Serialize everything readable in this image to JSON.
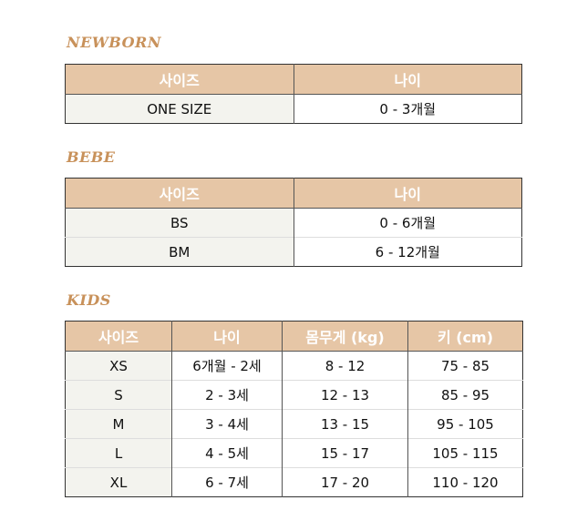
{
  "newborn": {
    "title": "NEWBORN",
    "headers": [
      "사이즈",
      "나이"
    ],
    "rows": [
      [
        "ONE SIZE",
        "0 - 3개월"
      ]
    ]
  },
  "bebe": {
    "title": "BEBE",
    "headers": [
      "사이즈",
      "나이"
    ],
    "rows": [
      [
        "BS",
        "0 - 6개월"
      ],
      [
        "BM",
        "6 - 12개월"
      ]
    ]
  },
  "kids": {
    "title": "KIDS",
    "headers": [
      "사이즈",
      "나이",
      "몸무게 (kg)",
      "키 (cm)"
    ],
    "rows": [
      [
        "XS",
        "6개월 - 2세",
        "8 - 12",
        "75 - 85"
      ],
      [
        "S",
        "2 - 3세",
        "12 - 13",
        "85 - 95"
      ],
      [
        "M",
        "3 - 4세",
        "13 - 15",
        "95 - 105"
      ],
      [
        "L",
        "4 - 5세",
        "15 - 17",
        "105 - 115"
      ],
      [
        "XL",
        "6 - 7세",
        "17 - 20",
        "110 - 120"
      ]
    ]
  },
  "colors": {
    "header_bg": "#e6c6a6",
    "title": "#c8915a",
    "first_col_bg": "#f3f3ee"
  }
}
